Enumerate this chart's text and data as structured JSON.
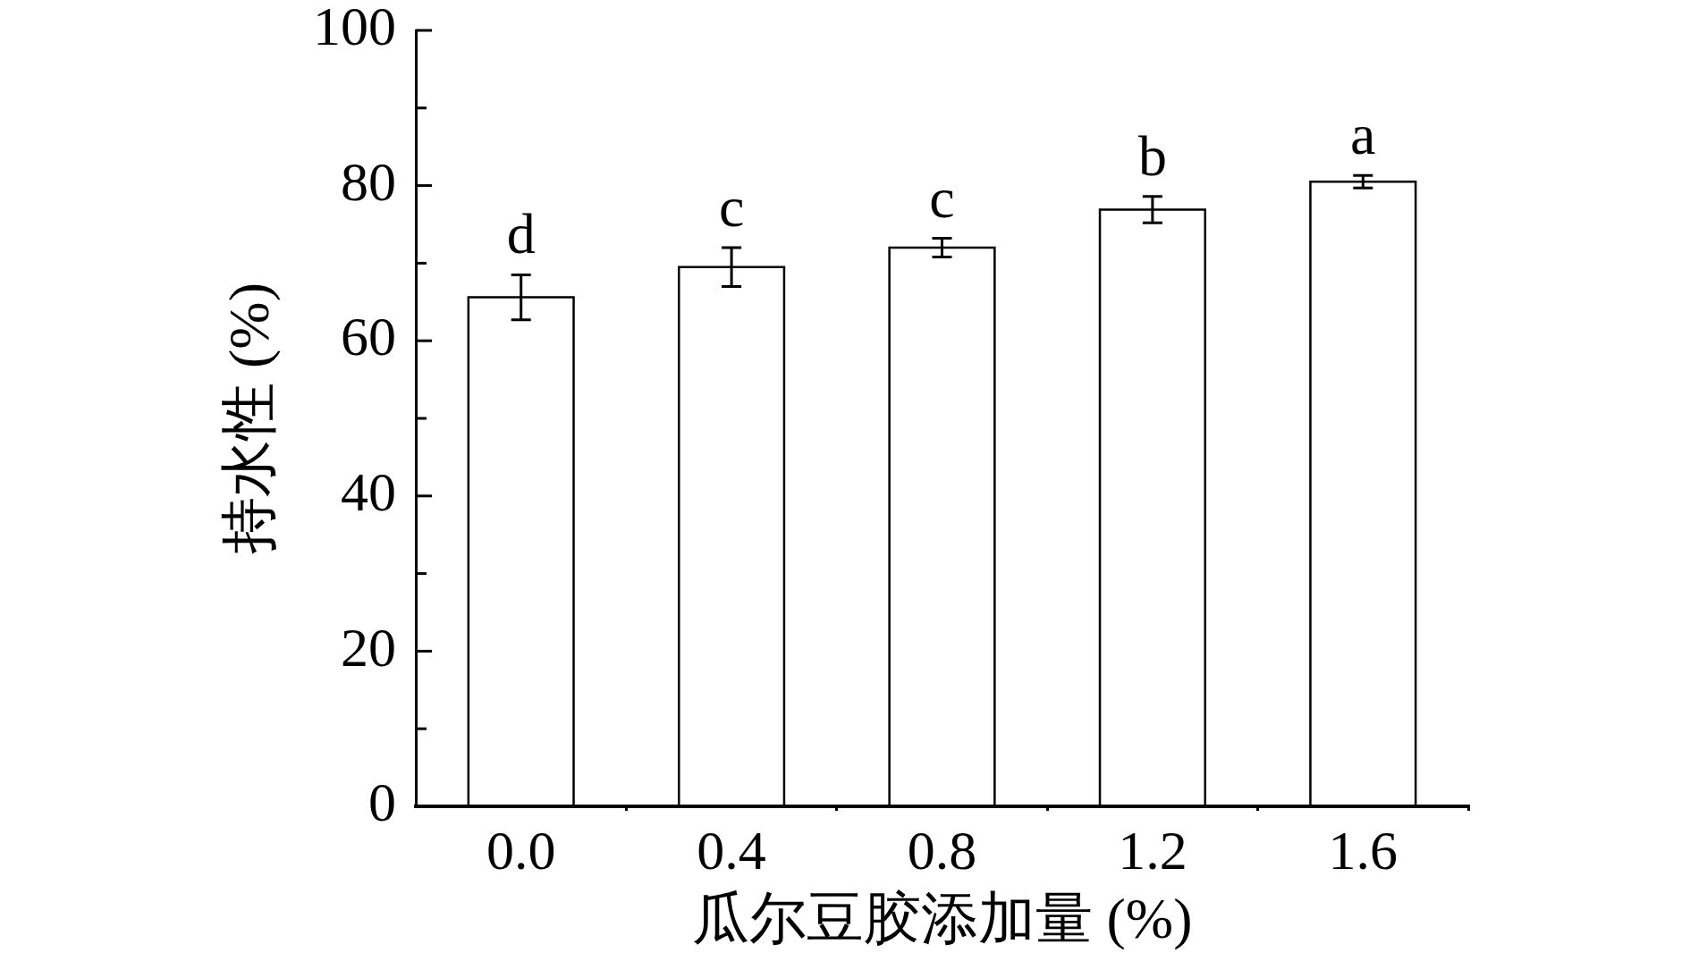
{
  "chart_data": {
    "type": "bar",
    "xlabel": "瓜尔豆胶添加量 (%)",
    "ylabel": "持水性 (%)",
    "categories": [
      "0.0",
      "0.4",
      "0.8",
      "1.2",
      "1.6"
    ],
    "values": [
      65.6,
      69.5,
      72.0,
      76.9,
      80.5
    ],
    "errors": [
      2.9,
      2.5,
      1.2,
      1.7,
      0.8
    ],
    "color": "#000000",
    "ylim": [
      0,
      100
    ],
    "yticks": [
      0,
      {
        "value": 10,
        "label": null
      },
      20,
      {
        "value": 30,
        "label": null
      },
      40,
      {
        "value": 50,
        "label": null
      },
      60,
      {
        "value": 70,
        "label": null
      },
      80,
      {
        "value": 90,
        "label": null
      },
      100
    ],
    "grid": false,
    "legend": false,
    "annotations": [
      {
        "text": "d",
        "x": "0.0",
        "y": 68.5
      },
      {
        "text": "c",
        "x": "0.4",
        "y": 72.0
      },
      {
        "text": "c",
        "x": "0.8",
        "y": 73.2
      },
      {
        "text": "b",
        "x": "1.2",
        "y": 78.6
      },
      {
        "text": "a",
        "x": "1.6",
        "y": 81.3
      }
    ]
  }
}
